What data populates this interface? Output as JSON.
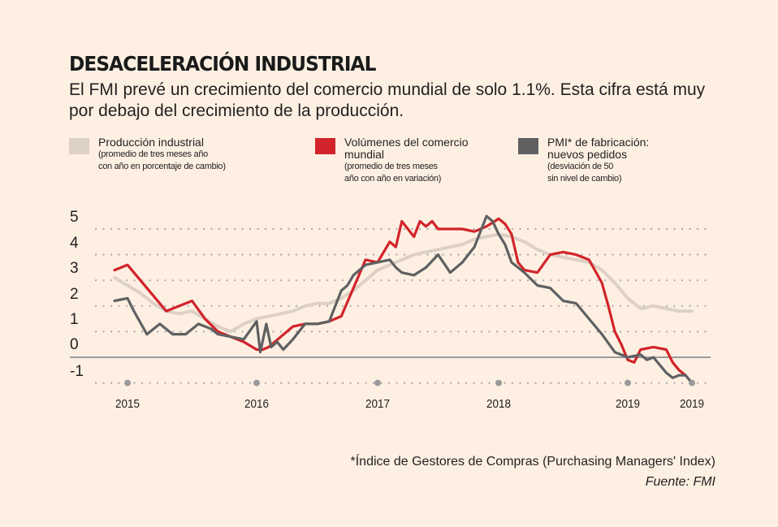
{
  "header": {
    "title": "DESACELERACIÓN INDUSTRIAL",
    "subtitle": "El FMI prevé un crecimiento del comercio mundial de solo 1.1%. Esta cifra está muy por debajo del crecimiento de la producción."
  },
  "legend": [
    {
      "name": "Producción industrial",
      "sub1": "(promedio de tres meses año",
      "sub2": "con año en porcentaje de cambio)",
      "color": "#ddd0c5"
    },
    {
      "name": "Volúmenes del comercio",
      "name2": "mundial",
      "sub1": "(promedio de tres meses",
      "sub2": "año con año en variación)",
      "color": "#d2232a"
    },
    {
      "name": "PMI* de fabricación:",
      "name2": "nuevos pedidos",
      "sub1": "(desviación de 50",
      "sub2": "sin nivel de cambio)",
      "color": "#5f6062"
    }
  ],
  "chart_data": {
    "type": "line",
    "title": "DESACELERACIÓN INDUSTRIAL",
    "xlabel": "",
    "ylabel": "",
    "ylim": [
      -1,
      5
    ],
    "y_ticks": [
      "5",
      "4",
      "3",
      "2",
      "1",
      "0",
      "-1"
    ],
    "y_tick_values": [
      5,
      4,
      3,
      2,
      1,
      0,
      -1
    ],
    "x_ticks": [
      "2015",
      "2016",
      "2017",
      "2018",
      "2019",
      "2019"
    ],
    "x_tick_values": [
      2015.0,
      2016.0,
      2017.0,
      2018.0,
      2019.0,
      2019.5
    ],
    "grid": "dotted horizontal",
    "legend_position": "top",
    "series": [
      {
        "name": "Producción industrial",
        "color": "#ddd0c5",
        "x": [
          2014.9,
          2015.0,
          2015.1,
          2015.2,
          2015.3,
          2015.4,
          2015.5,
          2015.6,
          2015.7,
          2015.8,
          2015.9,
          2016.0,
          2016.1,
          2016.2,
          2016.3,
          2016.4,
          2016.5,
          2016.6,
          2016.7,
          2016.8,
          2016.9,
          2017.0,
          2017.1,
          2017.2,
          2017.3,
          2017.4,
          2017.5,
          2017.6,
          2017.7,
          2017.8,
          2017.9,
          2018.0,
          2018.1,
          2018.2,
          2018.3,
          2018.4,
          2018.5,
          2018.6,
          2018.7,
          2018.8,
          2018.9,
          2019.0,
          2019.1,
          2019.2,
          2019.3,
          2019.4,
          2019.5
        ],
        "values": [
          3.1,
          2.8,
          2.5,
          2.1,
          1.8,
          1.7,
          1.8,
          1.5,
          1.2,
          1.0,
          1.3,
          1.5,
          1.6,
          1.7,
          1.8,
          2.0,
          2.1,
          2.1,
          2.3,
          2.6,
          3.0,
          3.4,
          3.6,
          3.8,
          4.0,
          4.1,
          4.2,
          4.3,
          4.4,
          4.6,
          4.7,
          4.8,
          4.7,
          4.5,
          4.2,
          4.0,
          3.9,
          3.8,
          3.7,
          3.4,
          2.9,
          2.3,
          1.9,
          2.0,
          1.9,
          1.8,
          1.8
        ]
      },
      {
        "name": "Volúmenes del comercio mundial",
        "color": "#d2232a",
        "x": [
          2014.9,
          2015.0,
          2015.05,
          2015.1,
          2015.2,
          2015.3,
          2015.35,
          2015.5,
          2015.6,
          2015.7,
          2015.8,
          2015.9,
          2016.0,
          2016.05,
          2016.1,
          2016.2,
          2016.3,
          2016.4,
          2016.5,
          2016.6,
          2016.7,
          2016.8,
          2016.9,
          2017.0,
          2017.1,
          2017.15,
          2017.2,
          2017.3,
          2017.35,
          2017.4,
          2017.45,
          2017.5,
          2017.6,
          2017.7,
          2017.8,
          2017.9,
          2018.0,
          2018.05,
          2018.1,
          2018.15,
          2018.2,
          2018.3,
          2018.4,
          2018.5,
          2018.6,
          2018.7,
          2018.8,
          2018.85,
          2018.9,
          2018.95,
          2019.0,
          2019.05,
          2019.1,
          2019.2,
          2019.3,
          2019.35,
          2019.4,
          2019.45
        ],
        "values": [
          3.4,
          3.6,
          3.3,
          3.0,
          2.4,
          1.8,
          1.9,
          2.2,
          1.5,
          1.0,
          0.8,
          0.6,
          0.3,
          0.3,
          0.4,
          0.8,
          1.2,
          1.3,
          1.3,
          1.4,
          1.6,
          2.7,
          3.8,
          3.7,
          4.5,
          4.3,
          5.3,
          4.7,
          5.3,
          5.1,
          5.3,
          5.0,
          5.0,
          5.0,
          4.9,
          5.1,
          5.4,
          5.2,
          4.8,
          3.7,
          3.4,
          3.3,
          4.0,
          4.1,
          4.0,
          3.8,
          2.9,
          2.0,
          1.0,
          0.5,
          -0.1,
          -0.2,
          0.3,
          0.4,
          0.3,
          -0.2,
          -0.5,
          -0.7
        ]
      },
      {
        "name": "PMI* de fabricación: nuevos pedidos",
        "color": "#5f6062",
        "x": [
          2014.9,
          2015.0,
          2015.05,
          2015.15,
          2015.25,
          2015.35,
          2015.45,
          2015.55,
          2015.65,
          2015.7,
          2015.8,
          2015.9,
          2016.0,
          2016.03,
          2016.08,
          2016.12,
          2016.17,
          2016.22,
          2016.3,
          2016.4,
          2016.5,
          2016.6,
          2016.7,
          2016.75,
          2016.8,
          2016.9,
          2017.0,
          2017.1,
          2017.15,
          2017.2,
          2017.3,
          2017.4,
          2017.5,
          2017.6,
          2017.7,
          2017.8,
          2017.9,
          2017.95,
          2018.0,
          2018.05,
          2018.1,
          2018.15,
          2018.2,
          2018.3,
          2018.4,
          2018.5,
          2018.6,
          2018.7,
          2018.8,
          2018.9,
          2019.0,
          2019.1,
          2019.15,
          2019.2,
          2019.3,
          2019.35,
          2019.4,
          2019.45,
          2019.5
        ],
        "values": [
          2.2,
          2.3,
          1.8,
          0.9,
          1.3,
          0.9,
          0.9,
          1.3,
          1.1,
          0.9,
          0.8,
          0.7,
          1.4,
          0.2,
          1.3,
          0.4,
          0.6,
          0.3,
          0.7,
          1.3,
          1.3,
          1.4,
          2.6,
          2.8,
          3.2,
          3.6,
          3.7,
          3.8,
          3.5,
          3.3,
          3.2,
          3.5,
          4.0,
          3.3,
          3.7,
          4.3,
          5.5,
          5.3,
          4.8,
          4.4,
          3.7,
          3.5,
          3.3,
          2.8,
          2.7,
          2.2,
          2.1,
          1.5,
          0.9,
          0.2,
          0.0,
          0.1,
          -0.1,
          0.0,
          -0.6,
          -0.8,
          -0.7,
          -0.7,
          -1.0
        ]
      }
    ]
  },
  "footer": {
    "footnote": "*Índice de Gestores de Compras (Purchasing Managers' Index)",
    "source": "Fuente: FMI"
  }
}
